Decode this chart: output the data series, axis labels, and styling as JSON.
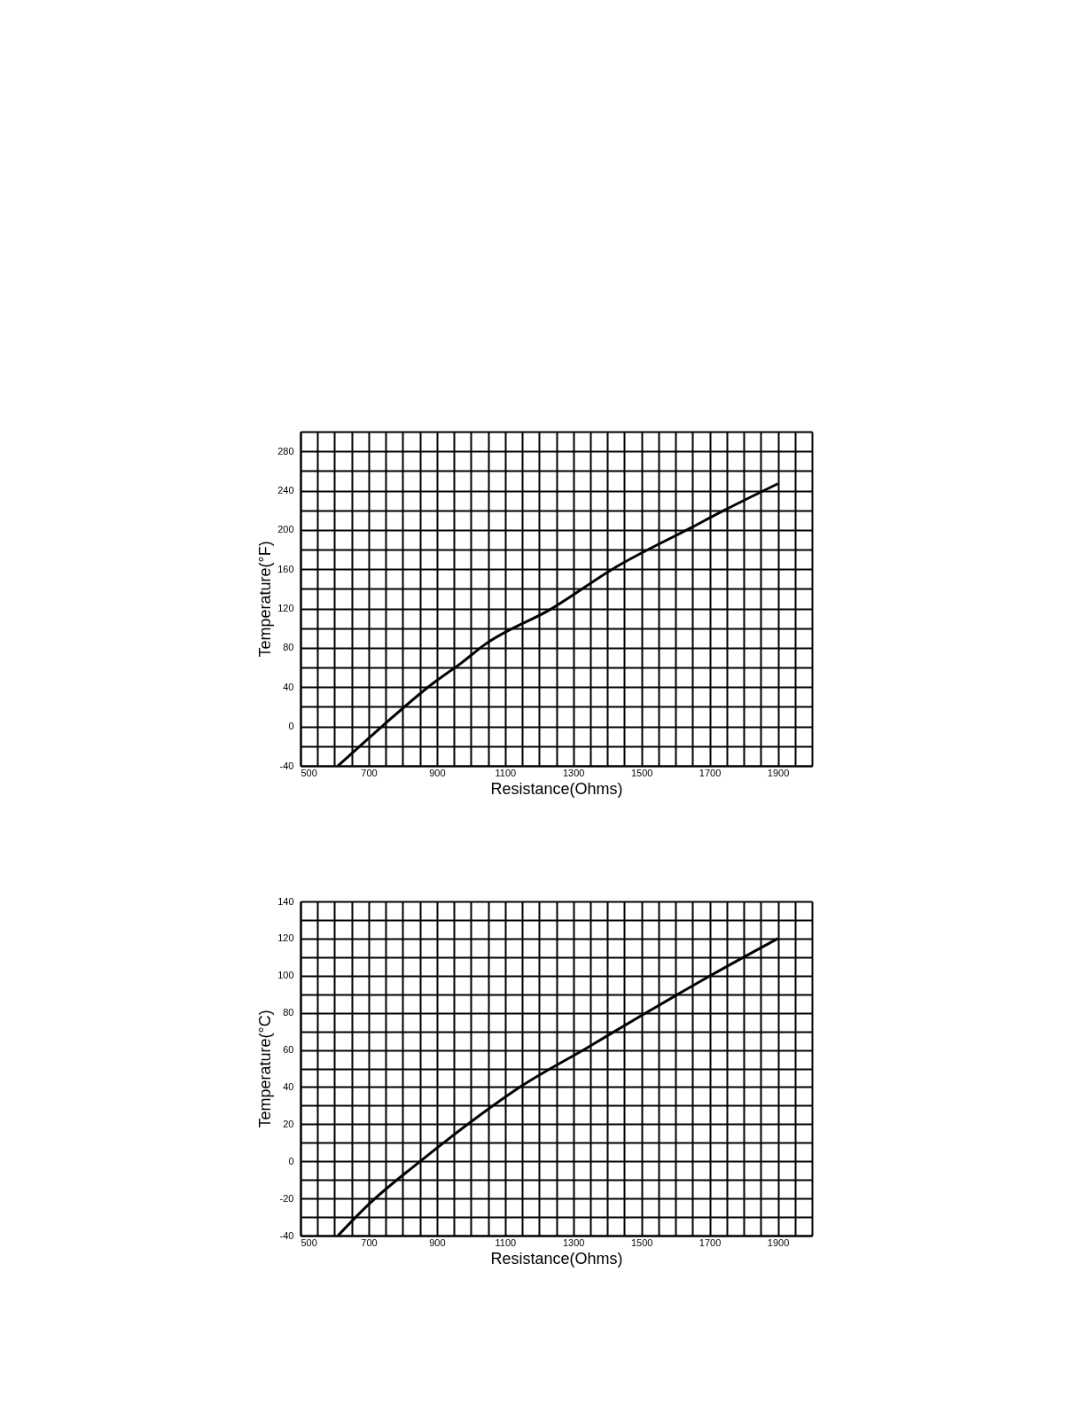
{
  "chart_data": [
    {
      "type": "line",
      "xlabel": "Resistance(Ohms)",
      "ylabel": "Temperature(°F)",
      "xlim": [
        500,
        2000
      ],
      "ylim": [
        -40,
        300
      ],
      "xticks": [
        500,
        {
          "value": 550,
          "label": null
        },
        {
          "value": 600,
          "label": null
        },
        {
          "value": 650,
          "label": null
        },
        700,
        {
          "value": 750,
          "label": null
        },
        {
          "value": 800,
          "label": null
        },
        {
          "value": 850,
          "label": null
        },
        900,
        {
          "value": 950,
          "label": null
        },
        {
          "value": 1000,
          "label": null
        },
        {
          "value": 1050,
          "label": null
        },
        1100,
        {
          "value": 1150,
          "label": null
        },
        {
          "value": 1200,
          "label": null
        },
        {
          "value": 1250,
          "label": null
        },
        1300,
        {
          "value": 1350,
          "label": null
        },
        {
          "value": 1400,
          "label": null
        },
        {
          "value": 1450,
          "label": null
        },
        1500,
        {
          "value": 1550,
          "label": null
        },
        {
          "value": 1600,
          "label": null
        },
        {
          "value": 1650,
          "label": null
        },
        1700,
        {
          "value": 1750,
          "label": null
        },
        {
          "value": 1800,
          "label": null
        },
        {
          "value": 1850,
          "label": null
        },
        1900,
        {
          "value": 1950,
          "label": null
        },
        {
          "value": 2000,
          "label": null
        }
      ],
      "yticks": [
        -40,
        {
          "value": -20,
          "label": null
        },
        0,
        {
          "value": 20,
          "label": null
        },
        40,
        {
          "value": 60,
          "label": null
        },
        80,
        {
          "value": 100,
          "label": null
        },
        120,
        {
          "value": 140,
          "label": null
        },
        160,
        {
          "value": 180,
          "label": null
        },
        200,
        {
          "value": 220,
          "label": null
        },
        240,
        {
          "value": 260,
          "label": null
        },
        280,
        {
          "value": 300,
          "label": null
        }
      ],
      "grid": true,
      "line_style": "solid",
      "marker": "none",
      "series": [
        {
          "color": "#000000",
          "x": [
            610,
            742,
            885,
            973,
            1039,
            1237,
            1424,
            1644,
            1743,
            1900
          ],
          "values": [
            -40,
            1,
            43,
            65,
            83,
            120,
            162,
            202,
            220,
            247
          ]
        }
      ]
    },
    {
      "type": "line",
      "xlabel": "Resistance(Ohms)",
      "ylabel": "Temperature(°C)",
      "xlim": [
        500,
        2000
      ],
      "ylim": [
        -40,
        140
      ],
      "xticks": [
        500,
        {
          "value": 550,
          "label": null
        },
        {
          "value": 600,
          "label": null
        },
        {
          "value": 650,
          "label": null
        },
        700,
        {
          "value": 750,
          "label": null
        },
        {
          "value": 800,
          "label": null
        },
        {
          "value": 850,
          "label": null
        },
        900,
        {
          "value": 950,
          "label": null
        },
        {
          "value": 1000,
          "label": null
        },
        {
          "value": 1050,
          "label": null
        },
        1100,
        {
          "value": 1150,
          "label": null
        },
        {
          "value": 1200,
          "label": null
        },
        {
          "value": 1250,
          "label": null
        },
        1300,
        {
          "value": 1350,
          "label": null
        },
        {
          "value": 1400,
          "label": null
        },
        {
          "value": 1450,
          "label": null
        },
        1500,
        {
          "value": 1550,
          "label": null
        },
        {
          "value": 1600,
          "label": null
        },
        {
          "value": 1650,
          "label": null
        },
        1700,
        {
          "value": 1750,
          "label": null
        },
        {
          "value": 1800,
          "label": null
        },
        {
          "value": 1850,
          "label": null
        },
        1900,
        {
          "value": 1950,
          "label": null
        },
        {
          "value": 2000,
          "label": null
        }
      ],
      "yticks": [
        -40,
        {
          "value": -30,
          "label": null
        },
        -20,
        {
          "value": -10,
          "label": null
        },
        0,
        {
          "value": 10,
          "label": null
        },
        20,
        {
          "value": 30,
          "label": null
        },
        40,
        {
          "value": 50,
          "label": null
        },
        60,
        {
          "value": 70,
          "label": null
        },
        80,
        {
          "value": 90,
          "label": null
        },
        100,
        {
          "value": 110,
          "label": null
        },
        120,
        {
          "value": 130,
          "label": null
        },
        140
      ],
      "grid": true,
      "line_style": "solid",
      "marker": "none",
      "series": [
        {
          "color": "#000000",
          "x": [
            610,
            701,
            844,
            998,
            1152,
            1339,
            1504,
            1702,
            1900
          ],
          "values": [
            -40,
            -23,
            -1,
            21,
            41,
            61,
            79,
            100,
            120
          ]
        }
      ]
    }
  ]
}
